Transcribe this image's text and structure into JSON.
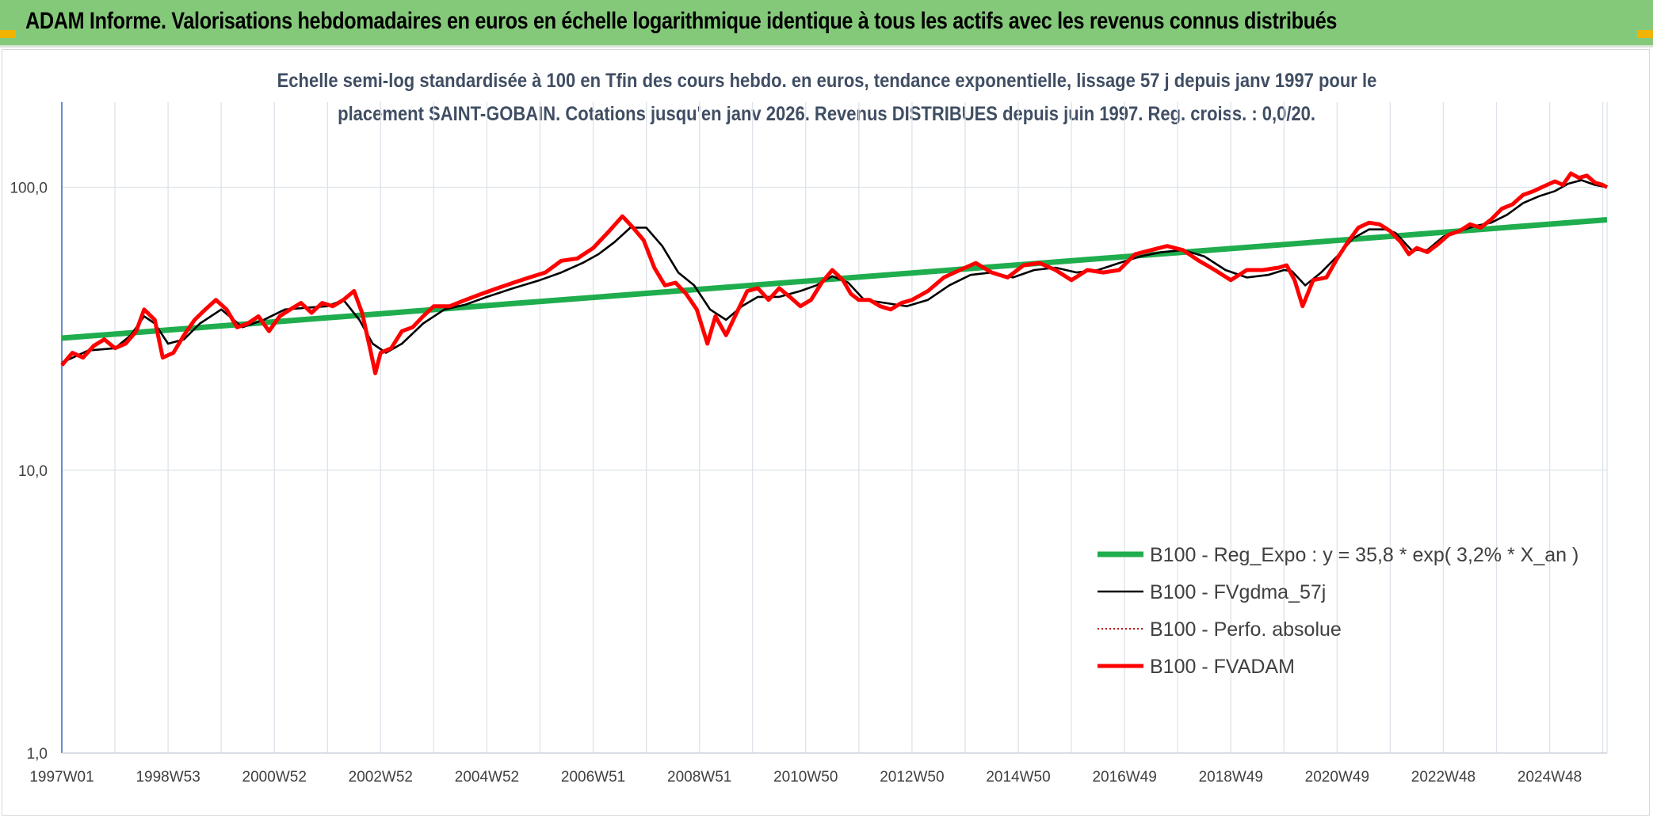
{
  "header": {
    "banner_title": "ADAM Informe. Valorisations hebdomadaires en euros en échelle logarithmique identique à tous les actifs avec les revenus connus distribués"
  },
  "chart_data": {
    "type": "line",
    "title_line1": "Echelle semi-log standardisée à 100 en Tfin des cours hebdo. en euros, tendance exponentielle, lissage 57 j depuis janv 1997 pour le",
    "title_line2": "placement SAINT-GOBAIN. Cotations jusqu'en janv 2026. Revenus DISTRIBUES depuis juin 1997. Reg. croiss. : 0,0/20.",
    "y_scale": "log",
    "ylim": [
      1,
      200
    ],
    "yticks": [
      {
        "value": 100,
        "label": "100,0"
      },
      {
        "value": 10,
        "label": "10,0"
      },
      {
        "value": 1,
        "label": "1,0"
      }
    ],
    "xlim": [
      1997.0,
      2026.08
    ],
    "xticks": [
      {
        "value": 1997.0,
        "label": "1997W01"
      },
      {
        "value": 1999.0,
        "label": "1998W53"
      },
      {
        "value": 2001.0,
        "label": "2000W52"
      },
      {
        "value": 2003.0,
        "label": "2002W52"
      },
      {
        "value": 2005.0,
        "label": "2004W52"
      },
      {
        "value": 2007.0,
        "label": "2006W51"
      },
      {
        "value": 2009.0,
        "label": "2008W51"
      },
      {
        "value": 2011.0,
        "label": "2010W50"
      },
      {
        "value": 2013.0,
        "label": "2012W50"
      },
      {
        "value": 2015.0,
        "label": "2014W50"
      },
      {
        "value": 2017.0,
        "label": "2016W49"
      },
      {
        "value": 2019.0,
        "label": "2018W49"
      },
      {
        "value": 2021.0,
        "label": "2020W49"
      },
      {
        "value": 2023.0,
        "label": "2022W48"
      },
      {
        "value": 2025.0,
        "label": "2024W48"
      }
    ],
    "grid": true,
    "legend_position": "bottom-right",
    "series": [
      {
        "name": "B100 - Reg_Expo : y = 35,8 * exp( 3,2% *  X_an )",
        "color": "#1fad4e",
        "style": "thick",
        "x": [
          1997.0,
          2026.08
        ],
        "y": [
          29.3,
          76.8
        ]
      },
      {
        "name": "B100 - FVgdma_57j",
        "color": "#000000",
        "style": "solid",
        "x": [
          1997.0,
          1997.5,
          1998.0,
          1998.3,
          1998.55,
          1998.75,
          1999.0,
          1999.3,
          1999.6,
          2000.0,
          2000.4,
          2000.8,
          2001.2,
          2001.6,
          2002.0,
          2002.3,
          2002.6,
          2002.85,
          2003.1,
          2003.4,
          2003.8,
          2004.2,
          2004.6,
          2005.0,
          2005.5,
          2006.0,
          2006.4,
          2006.8,
          2007.1,
          2007.4,
          2007.7,
          2008.0,
          2008.3,
          2008.6,
          2008.9,
          2009.2,
          2009.5,
          2009.8,
          2010.1,
          2010.5,
          2010.9,
          2011.2,
          2011.5,
          2011.8,
          2012.1,
          2012.5,
          2012.9,
          2013.3,
          2013.7,
          2014.1,
          2014.5,
          2014.9,
          2015.3,
          2015.7,
          2016.1,
          2016.5,
          2016.9,
          2017.3,
          2017.7,
          2018.1,
          2018.5,
          2018.9,
          2019.3,
          2019.7,
          2020.0,
          2020.15,
          2020.4,
          2020.7,
          2021.0,
          2021.3,
          2021.6,
          2021.9,
          2022.1,
          2022.4,
          2022.7,
          2023.0,
          2023.3,
          2023.6,
          2023.9,
          2024.2,
          2024.5,
          2024.8,
          2025.1,
          2025.35,
          2025.6,
          2025.85,
          2026.08
        ],
        "y": [
          24,
          26.5,
          27,
          30,
          35,
          33,
          28,
          29,
          33,
          37,
          32,
          34,
          37,
          37.5,
          38,
          40,
          34,
          28,
          26,
          28,
          33,
          37,
          38.5,
          41,
          44,
          47,
          50,
          54,
          58,
          64,
          72,
          72,
          62,
          50,
          45,
          37,
          34,
          38,
          41,
          41,
          43,
          45,
          48.5,
          46,
          40,
          39,
          38,
          40,
          45,
          49,
          50,
          48,
          51,
          52,
          50,
          51,
          54,
          57,
          59,
          60,
          57,
          51,
          48,
          49,
          51,
          50.5,
          45,
          50,
          57,
          66,
          71,
          71,
          69,
          60,
          60,
          67,
          70,
          73,
          75,
          80,
          88,
          93,
          97,
          103,
          106,
          102,
          100
        ]
      },
      {
        "name": "B100 - Perfo. absolue",
        "color": "#c00000",
        "style": "dotted",
        "x": [],
        "y": []
      },
      {
        "name": "B100 - FVADAM",
        "color": "#ff0000",
        "style": "thick",
        "x": [
          1997.0,
          1997.2,
          1997.4,
          1997.6,
          1997.8,
          1998.0,
          1998.2,
          1998.4,
          1998.55,
          1998.75,
          1998.9,
          1999.1,
          1999.3,
          1999.5,
          1999.7,
          1999.9,
          2000.1,
          2000.3,
          2000.5,
          2000.7,
          2000.9,
          2001.1,
          2001.3,
          2001.5,
          2001.7,
          2001.9,
          2002.1,
          2002.3,
          2002.5,
          2002.65,
          2002.8,
          2002.9,
          2003.0,
          2003.2,
          2003.4,
          2003.6,
          2003.8,
          2004.0,
          2004.3,
          2004.6,
          2004.9,
          2005.2,
          2005.5,
          2005.8,
          2006.1,
          2006.4,
          2006.7,
          2007.0,
          2007.3,
          2007.55,
          2007.75,
          2007.95,
          2008.15,
          2008.35,
          2008.55,
          2008.75,
          2008.95,
          2009.15,
          2009.3,
          2009.5,
          2009.7,
          2009.9,
          2010.1,
          2010.3,
          2010.5,
          2010.7,
          2010.9,
          2011.1,
          2011.3,
          2011.5,
          2011.7,
          2011.85,
          2012.0,
          2012.2,
          2012.4,
          2012.6,
          2012.8,
          2013.0,
          2013.3,
          2013.6,
          2013.9,
          2014.2,
          2014.5,
          2014.8,
          2015.1,
          2015.4,
          2015.7,
          2016.0,
          2016.3,
          2016.6,
          2016.9,
          2017.2,
          2017.5,
          2017.8,
          2018.1,
          2018.4,
          2018.7,
          2019.0,
          2019.3,
          2019.6,
          2019.9,
          2020.05,
          2020.2,
          2020.35,
          2020.55,
          2020.8,
          2021.0,
          2021.2,
          2021.4,
          2021.6,
          2021.8,
          2022.0,
          2022.2,
          2022.35,
          2022.5,
          2022.7,
          2022.9,
          2023.1,
          2023.3,
          2023.5,
          2023.7,
          2023.9,
          2024.1,
          2024.3,
          2024.5,
          2024.7,
          2024.9,
          2025.1,
          2025.25,
          2025.4,
          2025.55,
          2025.7,
          2025.85,
          2026.0,
          2026.08
        ],
        "y": [
          23.5,
          26,
          25,
          27.5,
          29,
          27,
          28,
          31,
          37,
          34,
          25,
          26,
          30,
          34,
          37,
          40,
          37,
          32,
          33,
          35,
          31,
          35,
          37,
          39,
          36,
          39,
          38,
          40,
          43,
          36,
          27,
          22,
          26,
          27,
          31,
          32,
          35,
          38,
          38,
          40,
          42,
          44,
          46,
          48,
          50,
          55,
          56,
          61,
          70,
          79,
          72,
          65,
          52,
          45,
          46,
          42,
          37,
          28,
          35,
          30,
          36,
          43,
          44,
          40,
          44,
          41,
          38,
          40,
          46,
          51,
          47,
          42,
          40,
          40,
          38,
          37,
          39,
          40,
          43,
          48,
          51,
          54,
          50,
          48,
          53,
          54,
          51,
          47,
          51,
          50,
          51,
          58,
          60,
          62,
          60,
          55,
          51,
          47,
          51,
          51,
          52,
          53,
          47,
          38,
          47,
          48,
          56,
          64,
          72,
          75,
          74,
          70,
          64,
          58,
          61,
          59,
          63,
          68,
          70,
          74,
          72,
          77,
          84,
          87,
          94,
          97,
          101,
          105,
          102,
          112,
          108,
          110,
          104,
          102,
          100
        ]
      }
    ]
  }
}
